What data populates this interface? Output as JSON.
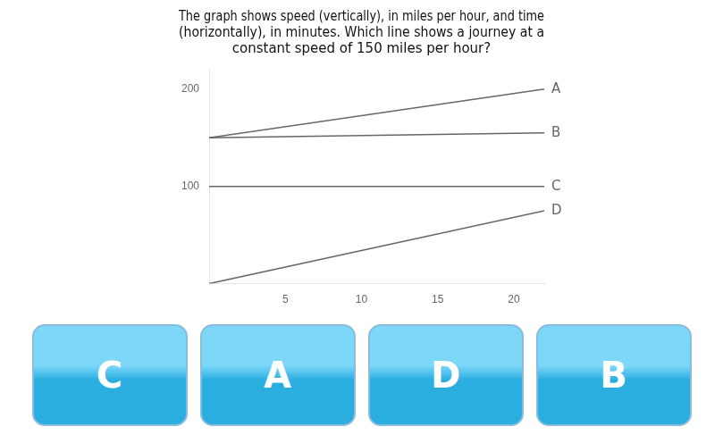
{
  "chart_data": {
    "type": "line",
    "title": [
      "The graph shows speed (vertically), in miles per hour, and time",
      "(horizontally), in minutes. Which line shows a journey at a",
      "constant speed of 150 miles per hour?"
    ],
    "x": [
      0,
      22
    ],
    "series": [
      {
        "name": "A",
        "values": [
          150,
          200
        ]
      },
      {
        "name": "B",
        "values": [
          150,
          155
        ]
      },
      {
        "name": "C",
        "values": [
          100,
          100
        ]
      },
      {
        "name": "D",
        "values": [
          0,
          75
        ]
      }
    ],
    "color": "#666666",
    "xlim": [
      0,
      22
    ],
    "xticks": [
      5,
      10,
      15,
      20
    ],
    "ylim": [
      0,
      220
    ],
    "yticks": [
      100,
      200
    ],
    "grid": false,
    "annotations": [
      "C",
      "A",
      "D",
      "B"
    ]
  }
}
